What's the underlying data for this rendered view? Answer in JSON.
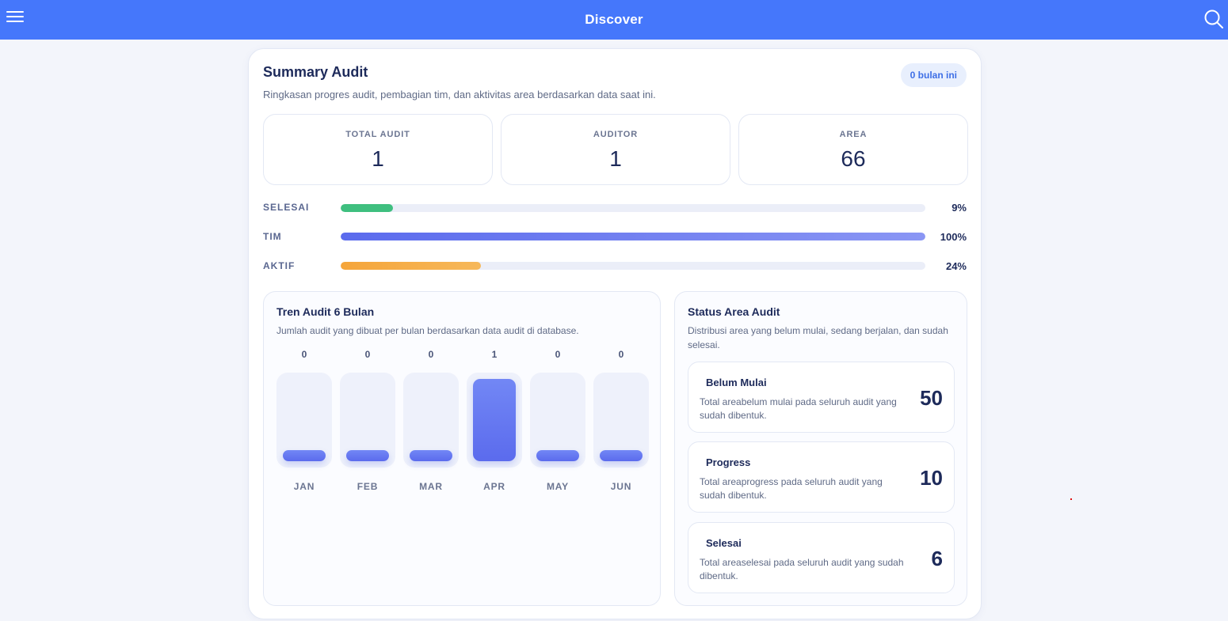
{
  "header": {
    "title": "Discover",
    "menu_icon": "hamburger-menu-icon",
    "search_icon": "search-icon"
  },
  "summary": {
    "title": "Summary Audit",
    "subtitle": "Ringkasan progres audit, pembagian tim, dan aktivitas area berdasarkan data saat ini.",
    "badge": "0 bulan ini"
  },
  "stats": [
    {
      "label": "TOTAL AUDIT",
      "value": "1"
    },
    {
      "label": "AUDITOR",
      "value": "1"
    },
    {
      "label": "AREA",
      "value": "66"
    }
  ],
  "progress": [
    {
      "label": "SELESAI",
      "percent": 9,
      "percent_text": "9%",
      "color": "#3fbf7f"
    },
    {
      "label": "TIM",
      "percent": 100,
      "percent_text": "100%",
      "color": "#5b6bed"
    },
    {
      "label": "AKTIF",
      "percent": 24,
      "percent_text": "24%",
      "color": "#f5a53a"
    }
  ],
  "trend": {
    "title": "Tren Audit 6 Bulan",
    "subtitle": "Jumlah audit yang dibuat per bulan berdasarkan data audit di database.",
    "chart_data": {
      "type": "bar",
      "categories": [
        "JAN",
        "FEB",
        "MAR",
        "APR",
        "MAY",
        "JUN"
      ],
      "values": [
        0,
        0,
        0,
        1,
        0,
        0
      ],
      "value_labels": [
        "0",
        "0",
        "0",
        "1",
        "0",
        "0"
      ],
      "ylim": [
        0,
        1
      ],
      "grid": false,
      "legend": "none"
    }
  },
  "status": {
    "title": "Status Area Audit",
    "subtitle_line1": "Distribusi area yang belum mulai, sedang berjalan, dan sudah",
    "subtitle_line2": "selesai.",
    "items": [
      {
        "name": "Belum Mulai",
        "desc_line1": "Total areabelum mulai pada seluruh audit yang",
        "desc_line2": "sudah dibentuk.",
        "count": "50"
      },
      {
        "name": "Progress",
        "desc_line1": "Total areaprogress pada seluruh audit yang",
        "desc_line2": "sudah dibentuk.",
        "count": "10"
      },
      {
        "name": "Selesai",
        "desc_line1": "Total areaselesai pada seluruh audit yang sudah",
        "desc_line2": "dibentuk.",
        "count": "6"
      }
    ]
  }
}
